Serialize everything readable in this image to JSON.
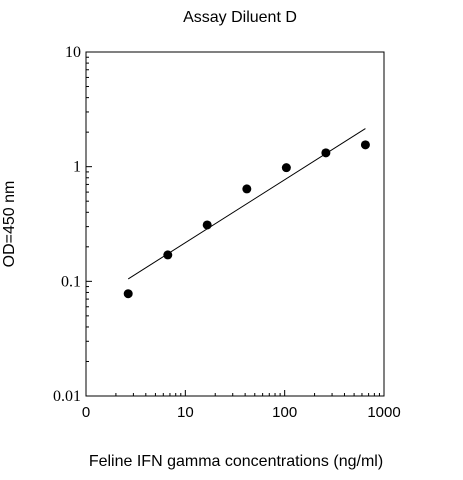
{
  "chart_data": {
    "type": "scatter",
    "title": "Assay Diluent D",
    "xlabel": "Feline IFN gamma concentrations (ng/ml)",
    "ylabel": "OD=450 nm",
    "x_scale": "log",
    "y_scale": "log",
    "xlim": [
      1,
      1000
    ],
    "ylim": [
      0.01,
      10
    ],
    "x_ticks": [
      1,
      10,
      100,
      1000
    ],
    "x_tick_labels": [
      "0",
      "10",
      "100",
      "1000"
    ],
    "y_ticks": [
      0.01,
      0.1,
      1,
      10
    ],
    "y_tick_labels": [
      "0.01",
      "0.1",
      "1",
      "10"
    ],
    "grid": false,
    "series": [
      {
        "x": [
          2.66,
          6.66,
          16.6,
          41.6,
          104,
          260,
          650
        ],
        "y": [
          0.078,
          0.17,
          0.31,
          0.64,
          0.98,
          1.32,
          1.55
        ]
      }
    ],
    "trendline": {
      "x": [
        2.66,
        650
      ],
      "y": [
        0.105,
        2.15
      ]
    },
    "colors": {
      "marker": "#000000",
      "line": "#000000",
      "axes": "#000000"
    }
  }
}
